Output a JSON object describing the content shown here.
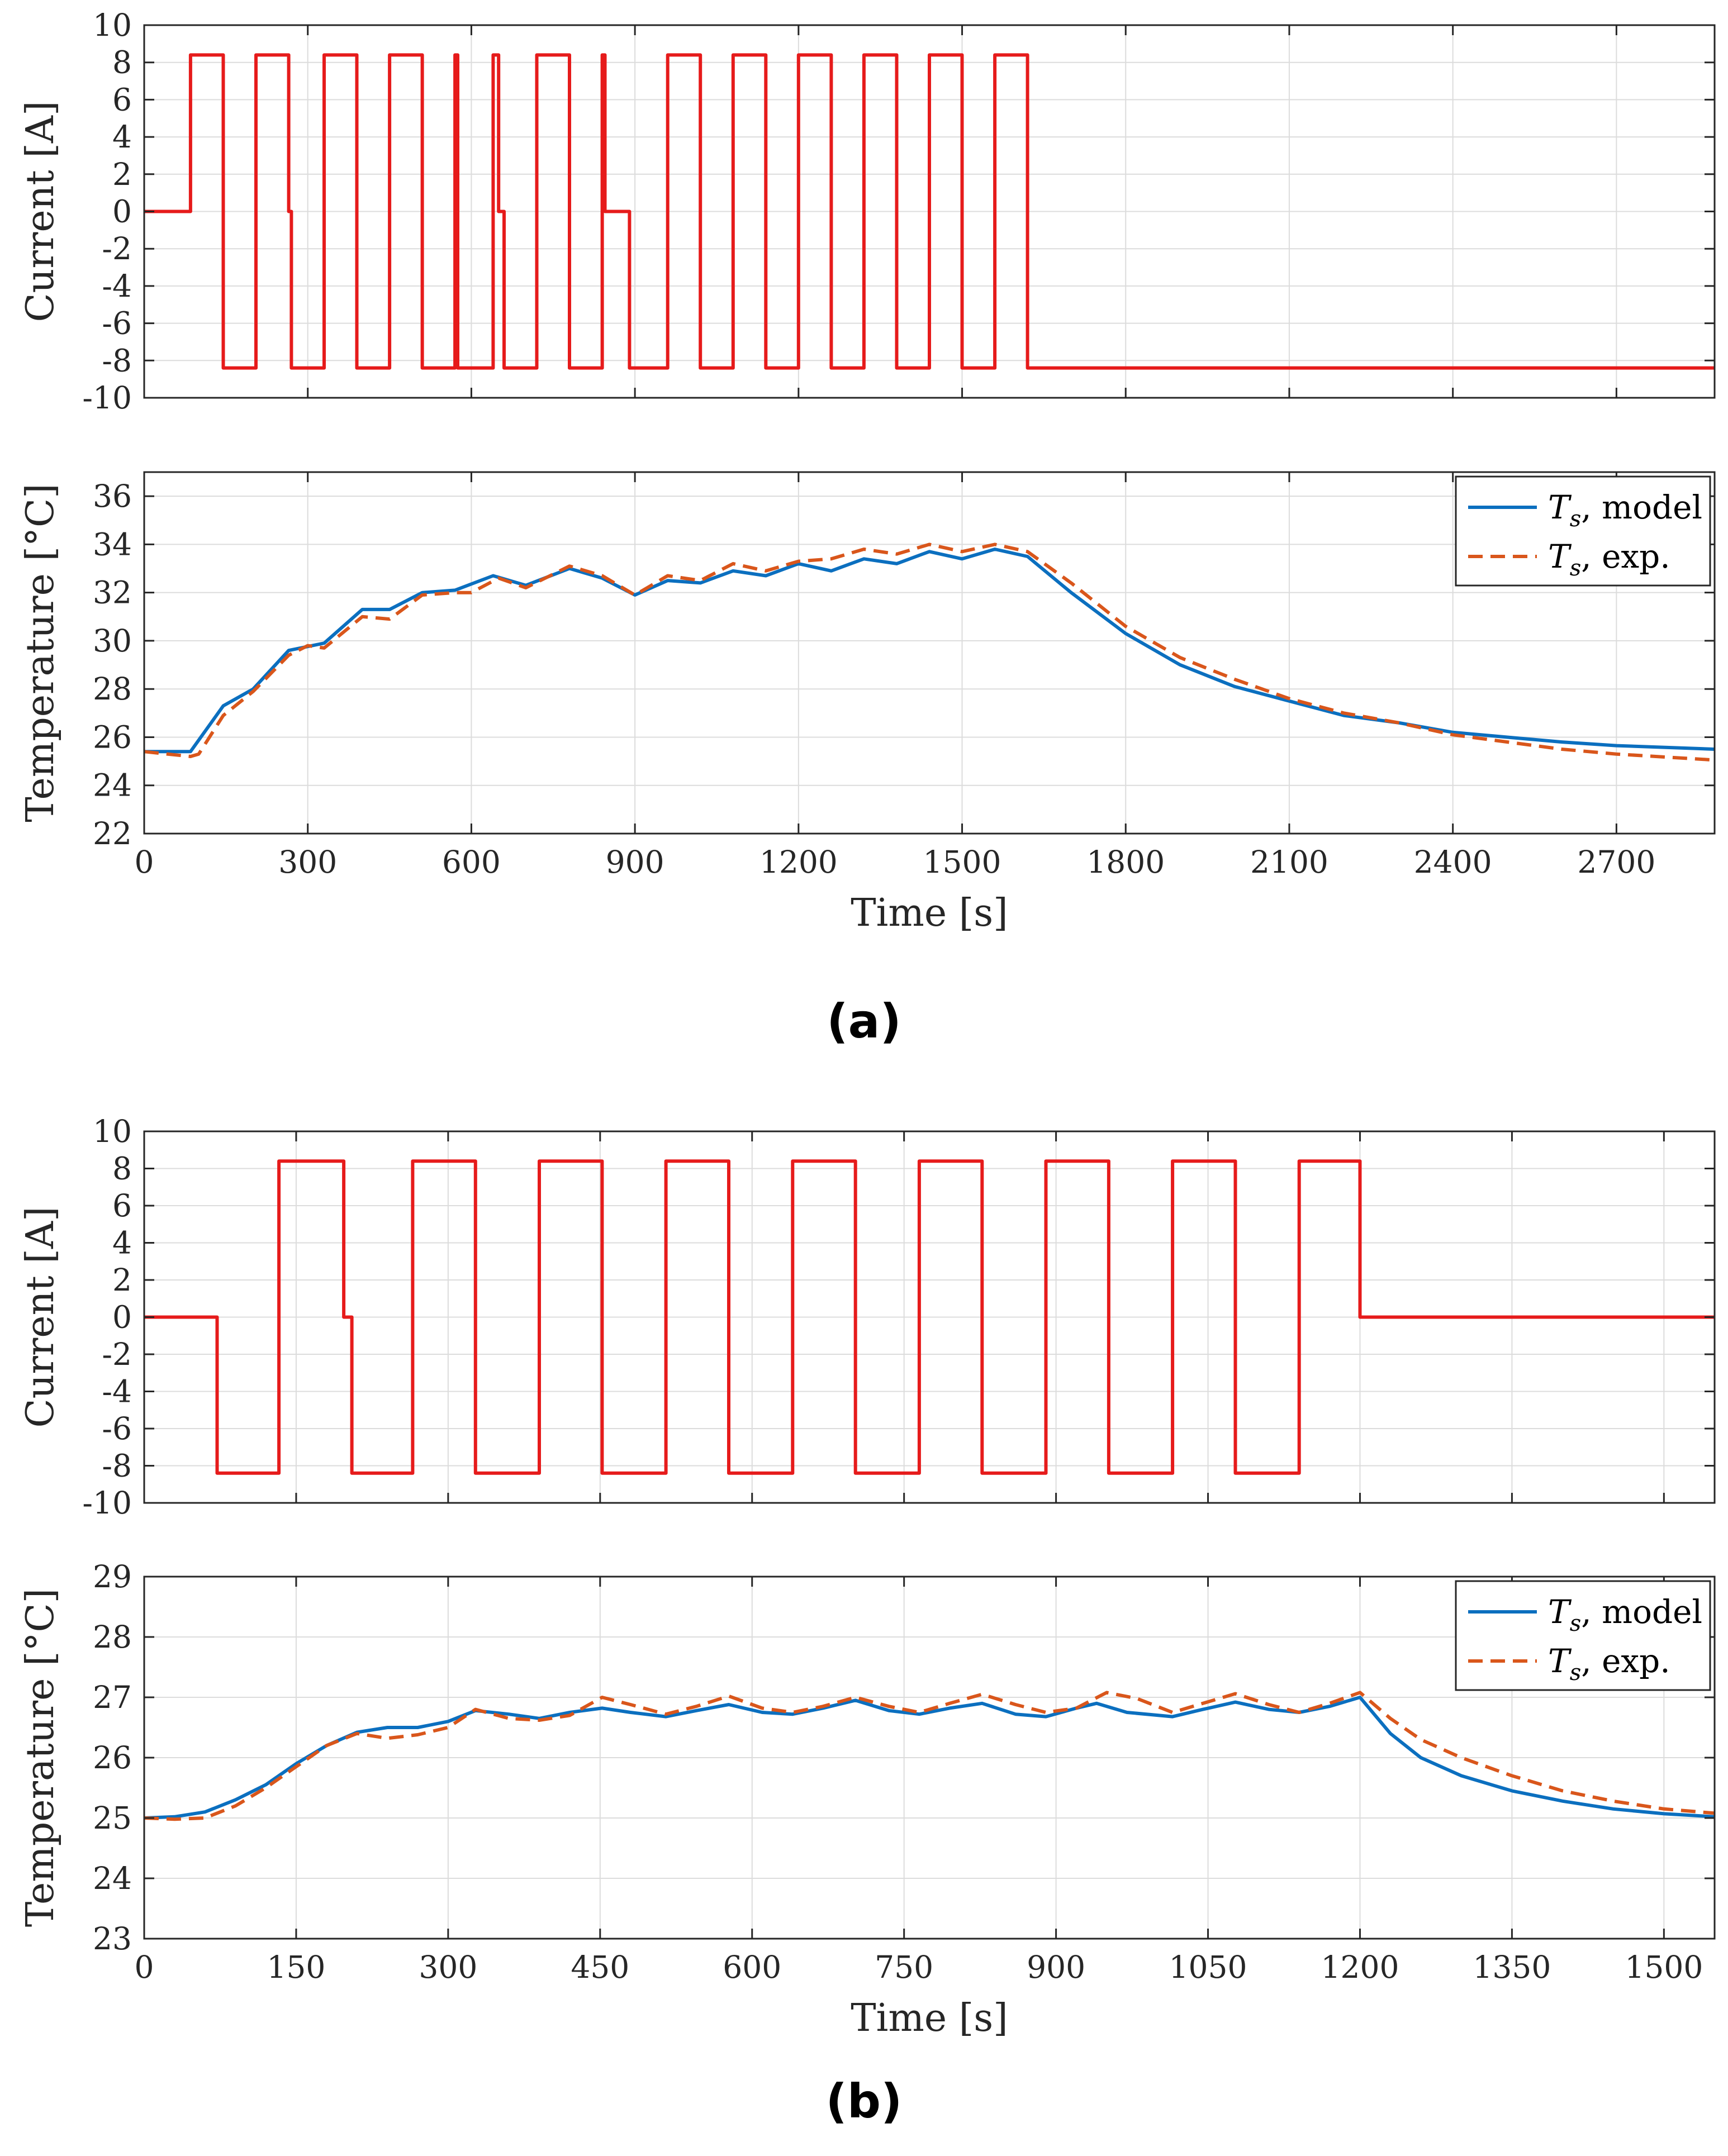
{
  "figure": {
    "panels": [
      {
        "label": "(a)"
      },
      {
        "label": "(b)"
      }
    ]
  },
  "colors": {
    "current": "#e61b1b",
    "model": "#0b6fbf",
    "exp": "#d9561b",
    "grid": "#dcdcdc",
    "axis": "#262626"
  },
  "chart_data": [
    {
      "id": "a-current",
      "type": "line",
      "title": "",
      "xlabel": "",
      "ylabel": "Current [A]",
      "xlim": [
        0,
        2880
      ],
      "ylim": [
        -10,
        10
      ],
      "xticks": [
        0,
        300,
        600,
        900,
        1200,
        1500,
        1800,
        2100,
        2400,
        2700
      ],
      "yticks": [
        -10,
        -8,
        -6,
        -4,
        -2,
        0,
        2,
        4,
        6,
        8,
        10
      ],
      "grid": true,
      "series": [
        {
          "name": "Current",
          "style": "solid",
          "x": [
            0,
            85,
            85,
            145,
            145,
            205,
            205,
            265,
            265,
            270,
            270,
            330,
            330,
            390,
            390,
            450,
            450,
            510,
            510,
            570,
            570,
            575,
            575,
            640,
            640,
            650,
            650,
            660,
            660,
            720,
            720,
            780,
            780,
            840,
            840,
            845,
            845,
            890,
            890,
            960,
            960,
            1020,
            1020,
            1080,
            1080,
            1140,
            1140,
            1200,
            1200,
            1260,
            1260,
            1320,
            1320,
            1380,
            1380,
            1440,
            1440,
            1500,
            1500,
            1560,
            1560,
            1620,
            1620,
            2880
          ],
          "y": [
            0,
            0,
            8.4,
            8.4,
            -8.4,
            -8.4,
            8.4,
            8.4,
            0,
            0,
            -8.4,
            -8.4,
            8.4,
            8.4,
            -8.4,
            -8.4,
            8.4,
            8.4,
            -8.4,
            -8.4,
            8.4,
            8.4,
            -8.4,
            -8.4,
            8.4,
            8.4,
            0,
            0,
            -8.4,
            -8.4,
            8.4,
            8.4,
            -8.4,
            -8.4,
            8.4,
            8.4,
            0,
            0,
            -8.4,
            -8.4,
            8.4,
            8.4,
            -8.4,
            -8.4,
            8.4,
            8.4,
            -8.4,
            -8.4,
            8.4,
            8.4,
            -8.4,
            -8.4,
            8.4,
            8.4,
            -8.4,
            -8.4,
            8.4,
            8.4,
            -8.4,
            -8.4,
            8.4,
            8.4,
            -8.4,
            -8.4
          ]
        }
      ]
    },
    {
      "id": "a-temperature",
      "type": "line",
      "title": "",
      "xlabel": "Time [s]",
      "ylabel": "Temperature [°C]",
      "xlim": [
        0,
        2880
      ],
      "ylim": [
        22,
        37
      ],
      "xticks": [
        0,
        300,
        600,
        900,
        1200,
        1500,
        1800,
        2100,
        2400,
        2700
      ],
      "yticks": [
        22,
        24,
        26,
        28,
        30,
        32,
        34,
        36
      ],
      "grid": true,
      "legend": {
        "position": "top-right",
        "entries": [
          {
            "sym": "T",
            "sub": "s",
            "text": ", model"
          },
          {
            "sym": "T",
            "sub": "s",
            "text": ", exp."
          }
        ]
      },
      "series": [
        {
          "name": "Ts, model",
          "style": "solid",
          "x": [
            0,
            85,
            145,
            200,
            265,
            330,
            400,
            450,
            510,
            570,
            640,
            700,
            780,
            840,
            900,
            960,
            1020,
            1080,
            1140,
            1200,
            1260,
            1320,
            1380,
            1440,
            1500,
            1560,
            1620,
            1700,
            1800,
            1900,
            2000,
            2100,
            2200,
            2300,
            2400,
            2500,
            2600,
            2700,
            2880
          ],
          "y": [
            25.4,
            25.4,
            27.3,
            28.0,
            29.6,
            29.9,
            31.3,
            31.3,
            32.0,
            32.1,
            32.7,
            32.3,
            33.0,
            32.6,
            31.9,
            32.5,
            32.4,
            32.9,
            32.7,
            33.2,
            32.9,
            33.4,
            33.2,
            33.7,
            33.4,
            33.8,
            33.5,
            32.0,
            30.3,
            29.0,
            28.1,
            27.5,
            26.9,
            26.6,
            26.2,
            26.0,
            25.8,
            25.65,
            25.5
          ]
        },
        {
          "name": "Ts, exp.",
          "style": "dashed",
          "x": [
            0,
            85,
            100,
            145,
            200,
            265,
            300,
            330,
            400,
            450,
            510,
            570,
            600,
            650,
            700,
            780,
            840,
            900,
            960,
            1020,
            1080,
            1140,
            1200,
            1260,
            1320,
            1380,
            1440,
            1500,
            1560,
            1620,
            1700,
            1800,
            1900,
            2000,
            2100,
            2200,
            2300,
            2400,
            2500,
            2600,
            2700,
            2880
          ],
          "y": [
            25.4,
            25.2,
            25.3,
            26.9,
            27.9,
            29.4,
            29.8,
            29.7,
            31.0,
            30.9,
            31.9,
            32.0,
            32.0,
            32.6,
            32.2,
            33.1,
            32.7,
            31.9,
            32.7,
            32.5,
            33.2,
            32.9,
            33.3,
            33.4,
            33.8,
            33.6,
            34.0,
            33.7,
            34.0,
            33.7,
            32.4,
            30.6,
            29.3,
            28.4,
            27.6,
            27.0,
            26.6,
            26.1,
            25.8,
            25.5,
            25.3,
            25.05
          ]
        }
      ]
    },
    {
      "id": "b-current",
      "type": "line",
      "title": "",
      "xlabel": "",
      "ylabel": "Current [A]",
      "xlim": [
        0,
        1550
      ],
      "ylim": [
        -10,
        10
      ],
      "xticks": [
        0,
        150,
        300,
        450,
        600,
        750,
        900,
        1050,
        1200,
        1350,
        1500
      ],
      "yticks": [
        -10,
        -8,
        -6,
        -4,
        -2,
        0,
        2,
        4,
        6,
        8,
        10
      ],
      "grid": true,
      "series": [
        {
          "name": "Current",
          "style": "solid",
          "x": [
            0,
            72,
            72,
            133,
            133,
            197,
            197,
            205,
            205,
            265,
            265,
            327,
            327,
            390,
            390,
            452,
            452,
            515,
            515,
            577,
            577,
            640,
            640,
            702,
            702,
            765,
            765,
            827,
            827,
            890,
            890,
            952,
            952,
            1015,
            1015,
            1077,
            1077,
            1140,
            1140,
            1200,
            1200,
            1550
          ],
          "y": [
            0,
            0,
            -8.4,
            -8.4,
            8.4,
            8.4,
            0,
            0,
            -8.4,
            -8.4,
            8.4,
            8.4,
            -8.4,
            -8.4,
            8.4,
            8.4,
            -8.4,
            -8.4,
            8.4,
            8.4,
            -8.4,
            -8.4,
            8.4,
            8.4,
            -8.4,
            -8.4,
            8.4,
            8.4,
            -8.4,
            -8.4,
            8.4,
            8.4,
            -8.4,
            -8.4,
            8.4,
            8.4,
            -8.4,
            -8.4,
            8.4,
            8.4,
            0,
            0
          ]
        }
      ]
    },
    {
      "id": "b-temperature",
      "type": "line",
      "title": "",
      "xlabel": "Time [s]",
      "ylabel": "Temperature [°C]",
      "xlim": [
        0,
        1550
      ],
      "ylim": [
        23,
        29
      ],
      "xticks": [
        0,
        150,
        300,
        450,
        600,
        750,
        900,
        1050,
        1200,
        1350,
        1500
      ],
      "yticks": [
        23,
        24,
        25,
        26,
        27,
        28,
        29
      ],
      "grid": true,
      "legend": {
        "position": "top-right",
        "entries": [
          {
            "sym": "T",
            "sub": "s",
            "text": ", model"
          },
          {
            "sym": "T",
            "sub": "s",
            "text": ", exp."
          }
        ]
      },
      "series": [
        {
          "name": "Ts, model",
          "style": "solid",
          "x": [
            0,
            30,
            60,
            90,
            120,
            150,
            180,
            210,
            240,
            270,
            300,
            327,
            360,
            390,
            420,
            452,
            480,
            515,
            545,
            577,
            610,
            640,
            670,
            702,
            735,
            765,
            795,
            827,
            860,
            890,
            920,
            940,
            970,
            1015,
            1045,
            1077,
            1110,
            1140,
            1170,
            1200,
            1230,
            1260,
            1300,
            1350,
            1400,
            1450,
            1500,
            1550
          ],
          "y": [
            25.0,
            25.02,
            25.1,
            25.3,
            25.55,
            25.9,
            26.2,
            26.42,
            26.5,
            26.5,
            26.6,
            26.78,
            26.72,
            26.65,
            26.75,
            26.82,
            26.75,
            26.68,
            26.78,
            26.88,
            26.75,
            26.72,
            26.82,
            26.95,
            26.78,
            26.72,
            26.82,
            26.9,
            26.72,
            26.68,
            26.82,
            26.9,
            26.75,
            26.68,
            26.8,
            26.92,
            26.8,
            26.75,
            26.85,
            27.0,
            26.4,
            26.0,
            25.7,
            25.45,
            25.28,
            25.15,
            25.07,
            25.02
          ]
        },
        {
          "name": "Ts, exp.",
          "style": "dashed",
          "x": [
            0,
            30,
            60,
            90,
            120,
            150,
            180,
            210,
            240,
            270,
            300,
            327,
            360,
            390,
            420,
            452,
            480,
            515,
            545,
            577,
            610,
            640,
            670,
            702,
            735,
            765,
            795,
            827,
            860,
            890,
            920,
            950,
            980,
            1015,
            1045,
            1077,
            1110,
            1140,
            1170,
            1200,
            1230,
            1260,
            1300,
            1350,
            1400,
            1450,
            1500,
            1550
          ],
          "y": [
            25.0,
            24.98,
            25.0,
            25.2,
            25.5,
            25.85,
            26.2,
            26.4,
            26.32,
            26.38,
            26.5,
            26.8,
            26.65,
            26.62,
            26.7,
            27.0,
            26.88,
            26.72,
            26.85,
            27.02,
            26.82,
            26.75,
            26.85,
            27.0,
            26.85,
            26.75,
            26.9,
            27.05,
            26.88,
            26.75,
            26.82,
            27.08,
            26.98,
            26.75,
            26.9,
            27.06,
            26.88,
            26.75,
            26.9,
            27.08,
            26.65,
            26.3,
            26.0,
            25.7,
            25.45,
            25.28,
            25.15,
            25.08
          ]
        }
      ]
    }
  ]
}
